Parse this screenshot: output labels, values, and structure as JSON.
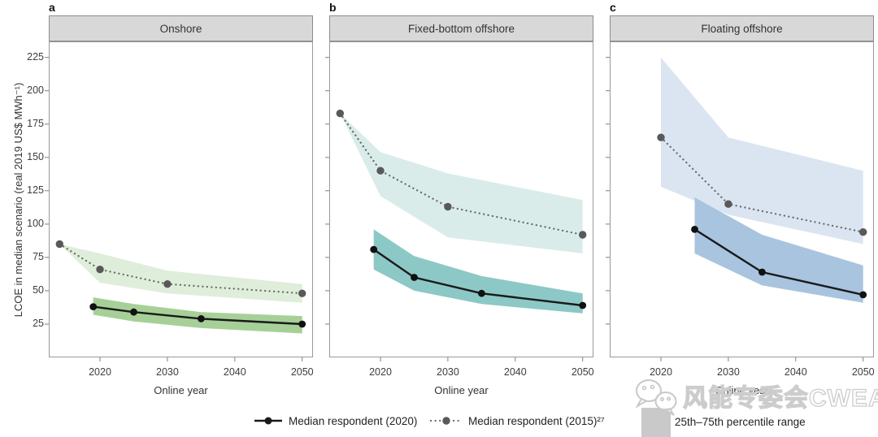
{
  "figure": {
    "y_axis": {
      "label": "LCOE in median scenario (real 2019 US$ MWh⁻¹)",
      "ticks": [
        25,
        50,
        75,
        100,
        125,
        150,
        175,
        200,
        225
      ]
    },
    "x_axis": {
      "label": "Online year",
      "ticks": [
        2020,
        2030,
        2040,
        2050
      ]
    }
  },
  "legend": {
    "median_2020": {
      "label": "Median respondent (2020)"
    },
    "median_2015": {
      "label": "Median respondent (2015)²⁷"
    },
    "percentile_range": {
      "label": "25th–75th percentile range"
    }
  },
  "watermark": {
    "text": "风能专委会CWEA",
    "icon": "wechat-logo-icon"
  },
  "colors": {
    "header_bg": "#d8d8d8",
    "frame": "#9a9a9a",
    "tick": "#7f7f7f",
    "median_2020_line": "#1a1a1a",
    "median_2015_line": "#6b6b6b",
    "median_2015_marker": "#595959",
    "onshore_band_light": "#dfeeda",
    "onshore_band_dark": "#a6d098",
    "fixed_band_light": "#d9ecea",
    "fixed_band_dark": "#8cc8c6",
    "floating_band_light": "#dbe5f1",
    "floating_band_dark": "#a9c4df",
    "legend_swatch": "#c9c9c9",
    "watermark_gray": "#cccccc"
  },
  "chart_data": [
    {
      "type": "line",
      "panel_label": "a",
      "title": "Onshore",
      "xlabel": "Online year",
      "ylabel": "LCOE in median scenario (real 2019 US$ MWh⁻¹)",
      "xlim": [
        2012.4,
        2051.6
      ],
      "ylim": [
        0,
        237
      ],
      "x_ticks": [
        2020,
        2030,
        2040,
        2050
      ],
      "y_ticks": [
        25,
        50,
        75,
        100,
        125,
        150,
        175,
        200,
        225
      ],
      "series": [
        {
          "name": "Median respondent (2015)",
          "style": "dotted",
          "color": "#6b6b6b",
          "marker_color": "#595959",
          "x": [
            2014,
            2020,
            2030,
            2050
          ],
          "y": [
            85,
            66,
            55,
            48
          ]
        },
        {
          "name": "Median respondent (2020)",
          "style": "solid",
          "color": "#1a1a1a",
          "marker_color": "#111111",
          "x": [
            2019,
            2025,
            2035,
            2050
          ],
          "y": [
            38,
            34,
            29,
            25
          ]
        }
      ],
      "bands": [
        {
          "name": "25th–75th percentile range (2015 survey)",
          "color": "#dfeeda",
          "x": [
            2014,
            2020,
            2030,
            2050
          ],
          "upper": [
            85,
            78,
            65,
            55
          ],
          "lower": [
            85,
            56,
            48,
            41
          ]
        },
        {
          "name": "25th–75th percentile range (2020 survey)",
          "color": "#a6d098",
          "x": [
            2019,
            2025,
            2035,
            2050
          ],
          "upper": [
            45,
            40,
            34,
            31
          ],
          "lower": [
            32,
            27,
            22,
            18
          ]
        }
      ]
    },
    {
      "type": "line",
      "panel_label": "b",
      "title": "Fixed-bottom offshore",
      "xlabel": "Online year",
      "ylabel": "LCOE in median scenario (real 2019 US$ MWh⁻¹)",
      "xlim": [
        2012.4,
        2051.6
      ],
      "ylim": [
        0,
        237
      ],
      "x_ticks": [
        2020,
        2030,
        2040,
        2050
      ],
      "y_ticks": [
        25,
        50,
        75,
        100,
        125,
        150,
        175,
        200,
        225
      ],
      "series": [
        {
          "name": "Median respondent (2015)",
          "style": "dotted",
          "color": "#6b6b6b",
          "marker_color": "#595959",
          "x": [
            2014,
            2020,
            2030,
            2050
          ],
          "y": [
            183,
            140,
            113,
            92
          ]
        },
        {
          "name": "Median respondent (2020)",
          "style": "solid",
          "color": "#1a1a1a",
          "marker_color": "#111111",
          "x": [
            2019,
            2025,
            2035,
            2050
          ],
          "y": [
            81,
            60,
            48,
            39
          ]
        }
      ],
      "bands": [
        {
          "name": "25th–75th percentile range (2015 survey)",
          "color": "#d9ecea",
          "x": [
            2014,
            2020,
            2030,
            2050
          ],
          "upper": [
            183,
            154,
            138,
            118
          ],
          "lower": [
            183,
            121,
            90,
            78
          ]
        },
        {
          "name": "25th–75th percentile range (2020 survey)",
          "color": "#8cc8c6",
          "x": [
            2019,
            2025,
            2035,
            2050
          ],
          "upper": [
            96,
            76,
            61,
            48
          ],
          "lower": [
            66,
            50,
            40,
            33
          ]
        }
      ]
    },
    {
      "type": "line",
      "panel_label": "c",
      "title": "Floating offshore",
      "xlabel": "Online year",
      "ylabel": "LCOE in median scenario (real 2019 US$ MWh⁻¹)",
      "xlim": [
        2012.4,
        2051.6
      ],
      "ylim": [
        0,
        237
      ],
      "x_ticks": [
        2020,
        2030,
        2040,
        2050
      ],
      "y_ticks": [
        25,
        50,
        75,
        100,
        125,
        150,
        175,
        200,
        225
      ],
      "series": [
        {
          "name": "Median respondent (2015)",
          "style": "dotted",
          "color": "#6b6b6b",
          "marker_color": "#595959",
          "x": [
            2020,
            2030,
            2050
          ],
          "y": [
            165,
            115,
            94
          ]
        },
        {
          "name": "Median respondent (2020)",
          "style": "solid",
          "color": "#1a1a1a",
          "marker_color": "#111111",
          "x": [
            2025,
            2035,
            2050
          ],
          "y": [
            96,
            64,
            47
          ]
        }
      ],
      "bands": [
        {
          "name": "25th–75th percentile range (2015 survey)",
          "color": "#dbe5f1",
          "x": [
            2020,
            2030,
            2050
          ],
          "upper": [
            225,
            165,
            140
          ],
          "lower": [
            128,
            107,
            85
          ]
        },
        {
          "name": "25th–75th percentile range (2020 survey)",
          "color": "#a9c4df",
          "x": [
            2025,
            2035,
            2050
          ],
          "upper": [
            120,
            92,
            69
          ],
          "lower": [
            78,
            54,
            41
          ]
        }
      ]
    }
  ]
}
